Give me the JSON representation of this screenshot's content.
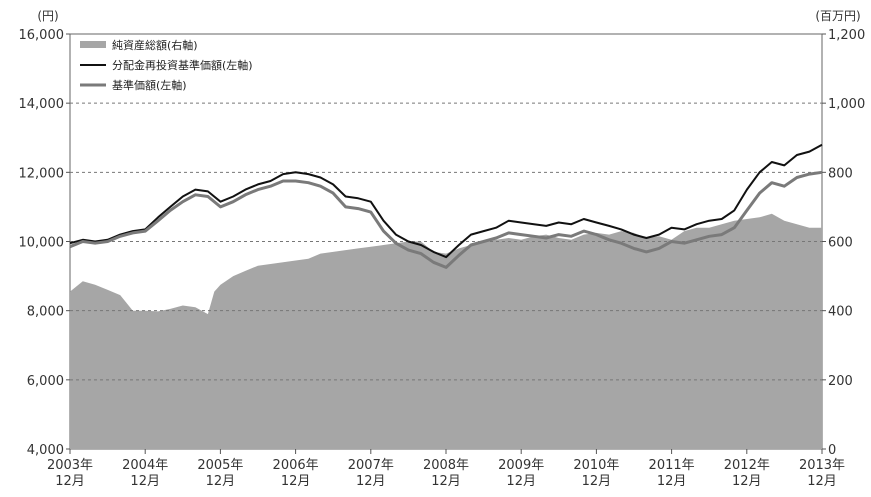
{
  "chart_data": {
    "type": "line",
    "left_unit": "(円)",
    "right_unit": "(百万円)",
    "left_ylim": [
      4000,
      16000
    ],
    "right_ylim": [
      0,
      1200
    ],
    "left_ticks": [
      "16,000",
      "14,000",
      "12,000",
      "10,000",
      "8,000",
      "6,000",
      "4,000"
    ],
    "right_ticks": [
      "1,200",
      "1,000",
      "800",
      "600",
      "400",
      "200",
      "0"
    ],
    "x_labels": [
      {
        "year": "2003年",
        "month": "12月"
      },
      {
        "year": "2004年",
        "month": "12月"
      },
      {
        "year": "2005年",
        "month": "12月"
      },
      {
        "year": "2006年",
        "month": "12月"
      },
      {
        "year": "2007年",
        "month": "12月"
      },
      {
        "year": "2008年",
        "month": "12月"
      },
      {
        "year": "2009年",
        "month": "12月"
      },
      {
        "year": "2010年",
        "month": "12月"
      },
      {
        "year": "2011年",
        "month": "12月"
      },
      {
        "year": "2012年",
        "month": "12月"
      },
      {
        "year": "2013年",
        "month": "12月"
      }
    ],
    "grid": "horizontal dashed",
    "legend_position": "top-left",
    "legend": [
      "純資産総額(右軸)",
      "分配金再投資基準価額(左軸)",
      "基準価額(左軸)"
    ],
    "series": [
      {
        "name": "純資産総額(右軸)",
        "axis": "right",
        "render": "area",
        "color": "#a6a6a6",
        "x": [
          "2003-12",
          "2004-02",
          "2004-04",
          "2004-06",
          "2004-08",
          "2004-10",
          "2004-12",
          "2005-02",
          "2005-04",
          "2005-06",
          "2005-08",
          "2005-10",
          "2005-11",
          "2005-12",
          "2006-02",
          "2006-04",
          "2006-06",
          "2006-08",
          "2006-10",
          "2006-12",
          "2007-02",
          "2007-04",
          "2007-06",
          "2007-08",
          "2007-10",
          "2007-12",
          "2008-02",
          "2008-04",
          "2008-06",
          "2008-08",
          "2008-10",
          "2008-12",
          "2009-02",
          "2009-04",
          "2009-06",
          "2009-08",
          "2009-10",
          "2009-12",
          "2010-02",
          "2010-04",
          "2010-06",
          "2010-08",
          "2010-10",
          "2010-12",
          "2011-02",
          "2011-04",
          "2011-06",
          "2011-08",
          "2011-10",
          "2011-12",
          "2012-02",
          "2012-04",
          "2012-06",
          "2012-08",
          "2012-10",
          "2012-12",
          "2013-02",
          "2013-04",
          "2013-06",
          "2013-08",
          "2013-10",
          "2013-12"
        ],
        "values": [
          455,
          485,
          475,
          460,
          445,
          400,
          400,
          398,
          405,
          415,
          410,
          390,
          455,
          475,
          500,
          515,
          530,
          535,
          540,
          545,
          550,
          565,
          570,
          575,
          580,
          585,
          590,
          595,
          600,
          600,
          570,
          565,
          580,
          590,
          600,
          605,
          610,
          605,
          615,
          620,
          610,
          605,
          620,
          625,
          620,
          630,
          625,
          610,
          615,
          605,
          630,
          640,
          640,
          650,
          660,
          665,
          670,
          680,
          660,
          650,
          640,
          640
        ]
      },
      {
        "name": "分配金再投資基準価額(左軸)",
        "axis": "left",
        "render": "line",
        "color": "#111111",
        "x": [
          "2003-12",
          "2004-02",
          "2004-04",
          "2004-06",
          "2004-08",
          "2004-10",
          "2004-12",
          "2005-02",
          "2005-04",
          "2005-06",
          "2005-08",
          "2005-10",
          "2005-12",
          "2006-02",
          "2006-04",
          "2006-06",
          "2006-08",
          "2006-10",
          "2006-12",
          "2007-02",
          "2007-04",
          "2007-06",
          "2007-08",
          "2007-10",
          "2007-12",
          "2008-02",
          "2008-04",
          "2008-06",
          "2008-08",
          "2008-10",
          "2008-12",
          "2009-02",
          "2009-04",
          "2009-06",
          "2009-08",
          "2009-10",
          "2009-12",
          "2010-02",
          "2010-04",
          "2010-06",
          "2010-08",
          "2010-10",
          "2010-12",
          "2011-02",
          "2011-04",
          "2011-06",
          "2011-08",
          "2011-10",
          "2011-12",
          "2012-02",
          "2012-04",
          "2012-06",
          "2012-08",
          "2012-10",
          "2012-12",
          "2013-02",
          "2013-04",
          "2013-06",
          "2013-08",
          "2013-10",
          "2013-12"
        ],
        "values": [
          9950,
          10050,
          10000,
          10050,
          10200,
          10300,
          10350,
          10700,
          11000,
          11300,
          11500,
          11450,
          11150,
          11300,
          11500,
          11650,
          11750,
          11950,
          12000,
          11950,
          11850,
          11650,
          11300,
          11250,
          11150,
          10600,
          10200,
          10000,
          9900,
          9700,
          9550,
          9900,
          10200,
          10300,
          10400,
          10600,
          10550,
          10500,
          10450,
          10550,
          10500,
          10650,
          10550,
          10450,
          10350,
          10200,
          10100,
          10200,
          10400,
          10350,
          10500,
          10600,
          10650,
          10900,
          11500,
          12000,
          12300,
          12200,
          12500,
          12600,
          12800
        ]
      },
      {
        "name": "基準価額(左軸)",
        "axis": "left",
        "render": "line",
        "color": "#7a7a7a",
        "x": [
          "2003-12",
          "2004-02",
          "2004-04",
          "2004-06",
          "2004-08",
          "2004-10",
          "2004-12",
          "2005-02",
          "2005-04",
          "2005-06",
          "2005-08",
          "2005-10",
          "2005-12",
          "2006-02",
          "2006-04",
          "2006-06",
          "2006-08",
          "2006-10",
          "2006-12",
          "2007-02",
          "2007-04",
          "2007-06",
          "2007-08",
          "2007-10",
          "2007-12",
          "2008-02",
          "2008-04",
          "2008-06",
          "2008-08",
          "2008-10",
          "2008-12",
          "2009-02",
          "2009-04",
          "2009-06",
          "2009-08",
          "2009-10",
          "2009-12",
          "2010-02",
          "2010-04",
          "2010-06",
          "2010-08",
          "2010-10",
          "2010-12",
          "2011-02",
          "2011-04",
          "2011-06",
          "2011-08",
          "2011-10",
          "2011-12",
          "2012-02",
          "2012-04",
          "2012-06",
          "2012-08",
          "2012-10",
          "2012-12",
          "2013-02",
          "2013-04",
          "2013-06",
          "2013-08",
          "2013-10",
          "2013-12"
        ],
        "values": [
          9850,
          10000,
          9950,
          10000,
          10150,
          10250,
          10300,
          10600,
          10900,
          11150,
          11350,
          11300,
          11000,
          11150,
          11350,
          11500,
          11600,
          11750,
          11750,
          11700,
          11600,
          11400,
          11000,
          10950,
          10850,
          10300,
          9950,
          9750,
          9650,
          9400,
          9250,
          9600,
          9900,
          10000,
          10100,
          10250,
          10200,
          10150,
          10100,
          10200,
          10150,
          10300,
          10200,
          10050,
          9950,
          9800,
          9700,
          9800,
          10000,
          9950,
          10050,
          10150,
          10200,
          10400,
          10900,
          11400,
          11700,
          11600,
          11850,
          11950,
          12000
        ]
      }
    ]
  }
}
